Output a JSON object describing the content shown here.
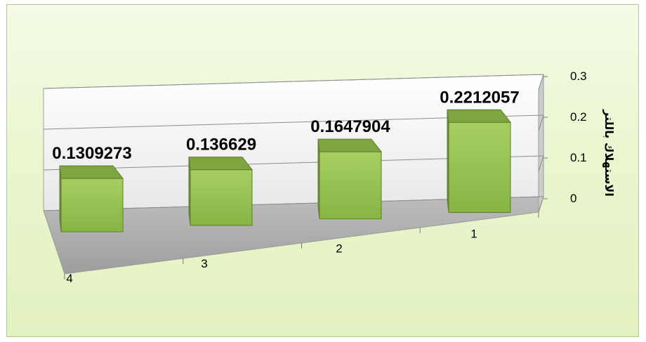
{
  "chart_data": {
    "type": "bar",
    "style": "3d-column",
    "categories": [
      "4",
      "3",
      "2",
      "1"
    ],
    "values": [
      0.1309273,
      0.136629,
      0.1647904,
      0.2212057
    ],
    "data_labels": [
      "0.1309273",
      "0.136629",
      "0.1647904",
      "0.2212057"
    ],
    "ylabel": "الاستهلاك باللتر",
    "ylim": [
      0,
      0.3
    ],
    "y_ticks": [
      "0",
      "0.1",
      "0.2",
      "0.3"
    ],
    "y_tick_values": [
      0,
      0.1,
      0.2,
      0.3
    ],
    "grid": true,
    "legend": "none",
    "colors": {
      "bar_front": "#92c04f",
      "bar_side": "#6f8f34",
      "bar_top": "#7ea640",
      "frame_bg": "#eaf6cf",
      "floor": "#a8a8a8",
      "back_wall": "#f5f5f5",
      "side_wall": "#cfcfcf"
    }
  }
}
